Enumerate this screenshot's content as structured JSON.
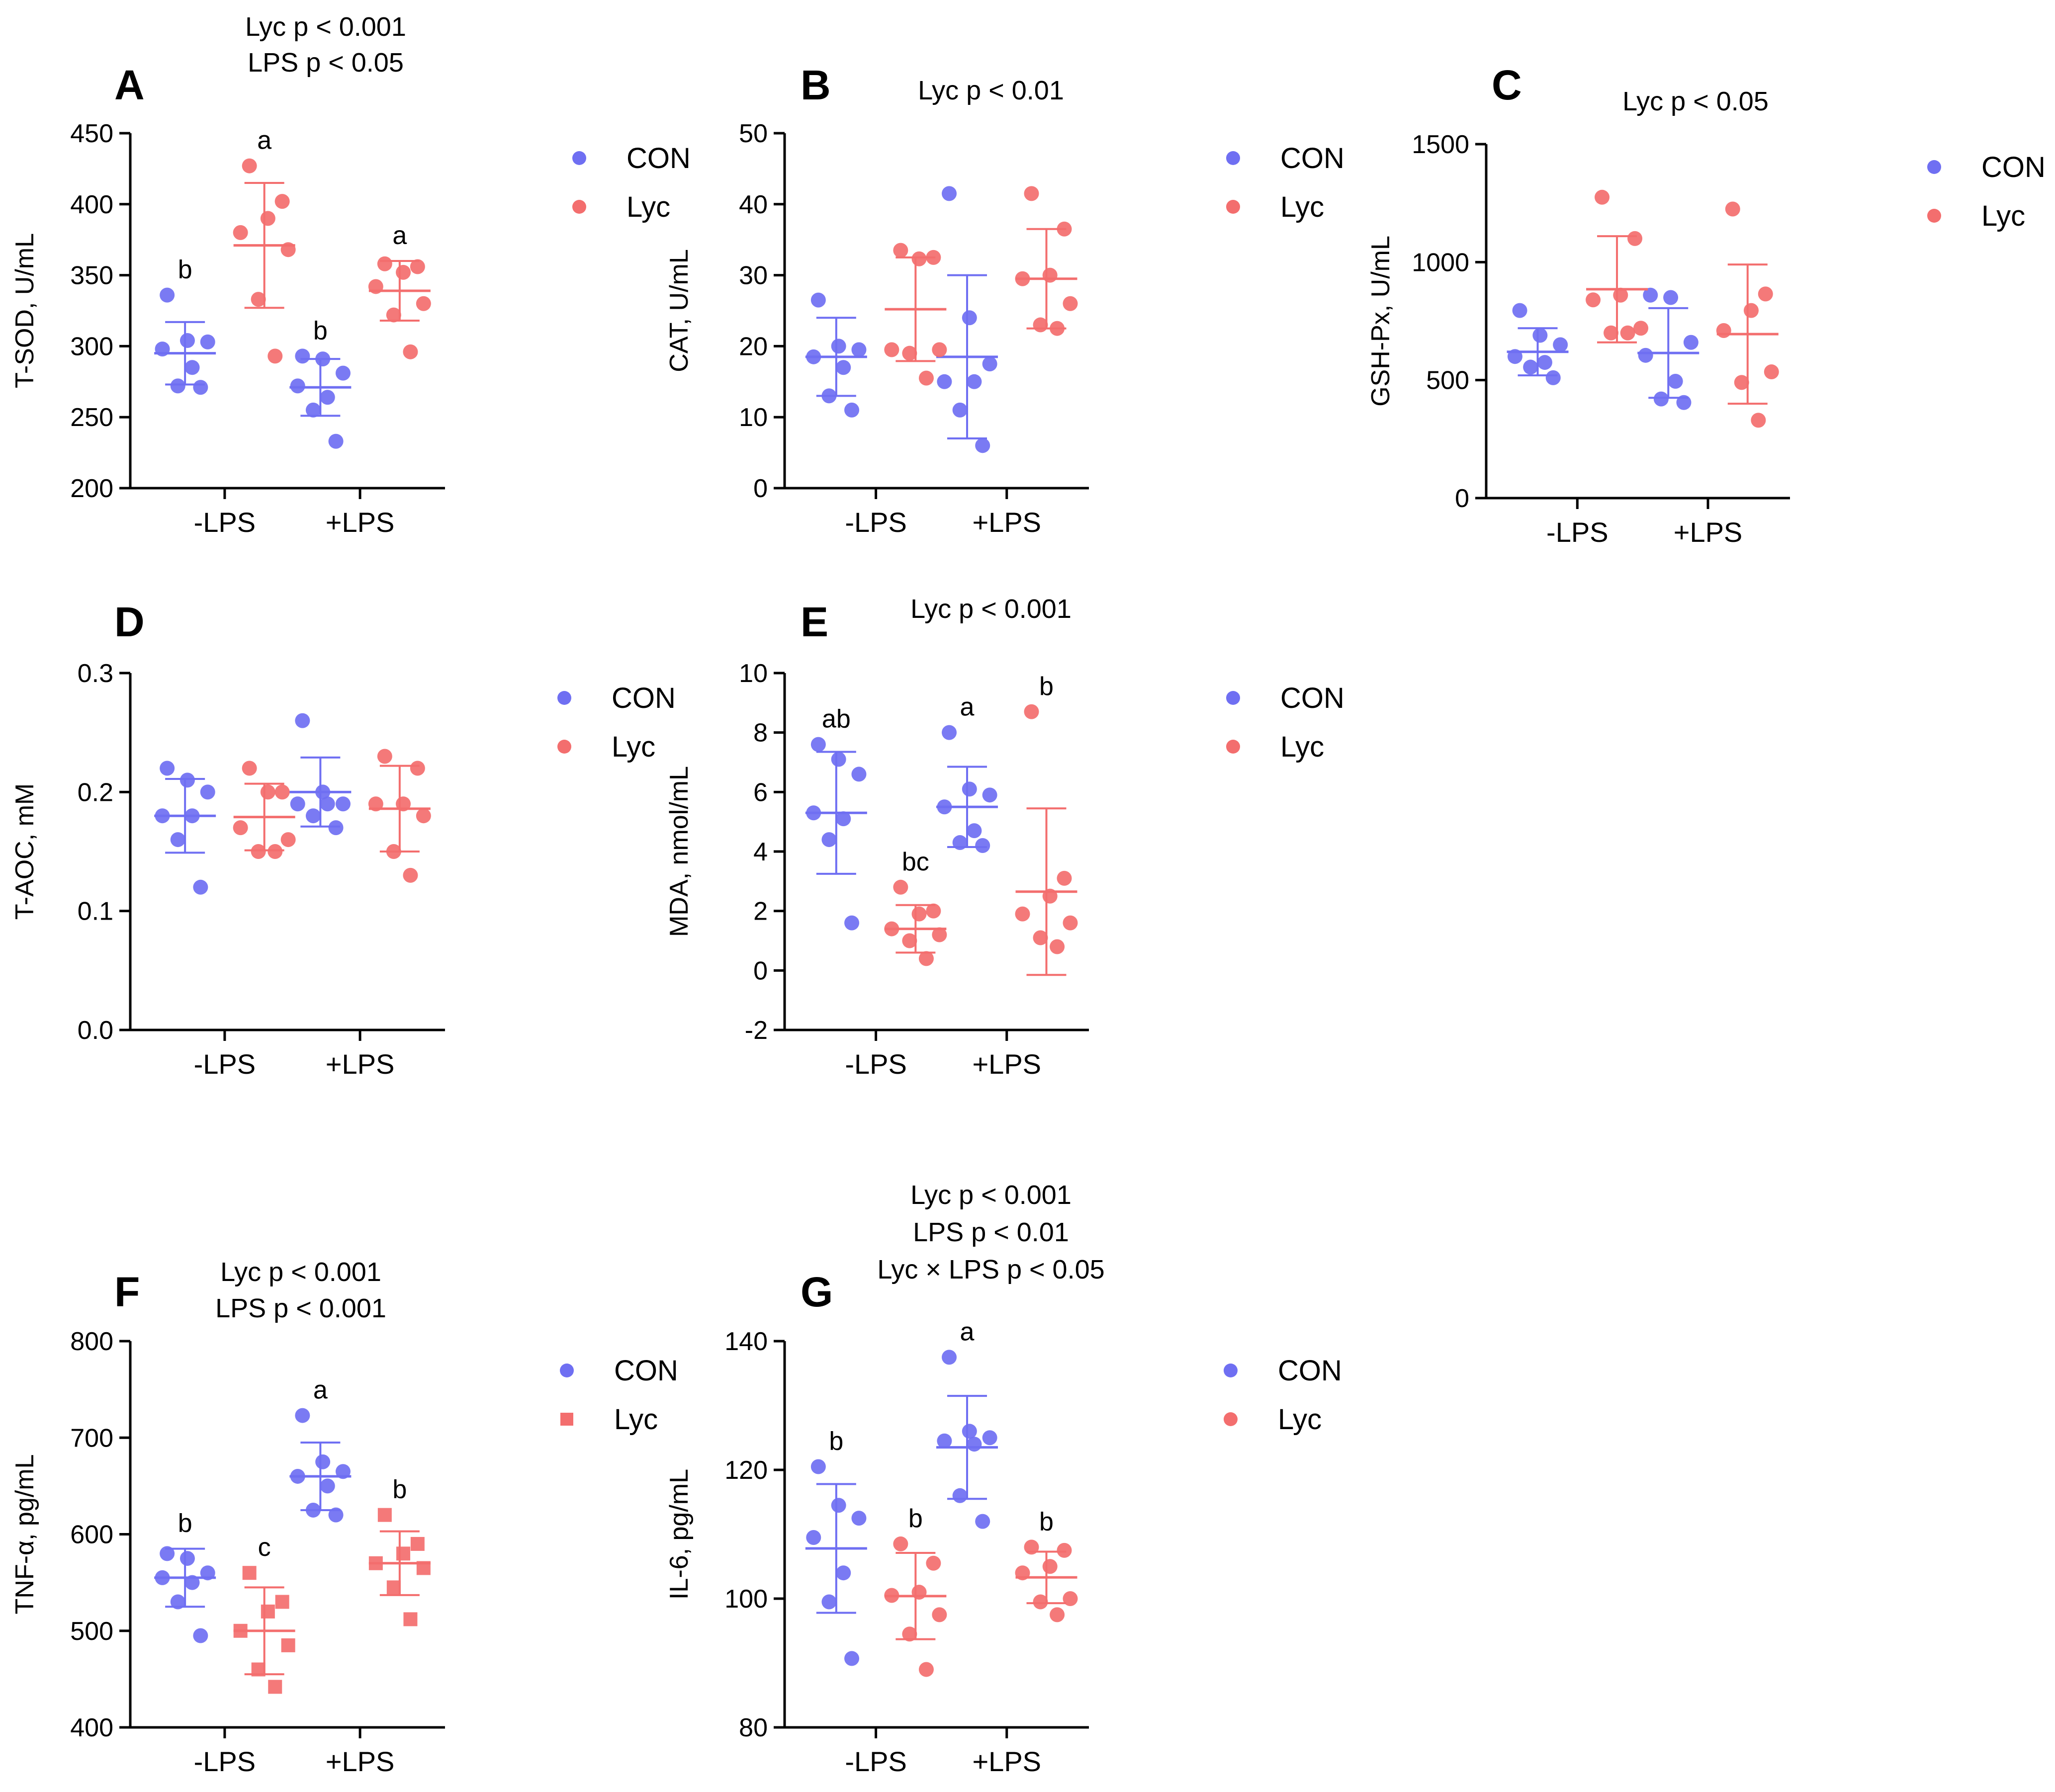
{
  "colors": {
    "con": "#6f6ff2",
    "lyc": "#f36e6e",
    "axis": "#000000"
  },
  "chart_data": [
    {
      "panel": "A",
      "type": "scatter",
      "title": "",
      "stats": [
        "Lyc p < 0.001",
        "LPS p < 0.05"
      ],
      "xlabel": "",
      "ylabel": "T-SOD, U/mL",
      "ylim": [
        200,
        450
      ],
      "ticks": [
        200,
        250,
        300,
        350,
        400,
        450
      ],
      "categories": [
        "-LPS",
        "+LPS"
      ],
      "legend": [
        "CON",
        "Lyc"
      ],
      "series": [
        {
          "name": "CON",
          "marker": "circle",
          "groups": [
            {
              "category": "-LPS",
              "mean": 295,
              "sd": 22,
              "points": [
                336,
                304,
                303,
                298,
                285,
                272,
                271
              ],
              "letter": "b"
            },
            {
              "category": "+LPS",
              "mean": 271,
              "sd": 20,
              "points": [
                293,
                291,
                281,
                272,
                264,
                255,
                233
              ],
              "letter": "b"
            }
          ]
        },
        {
          "name": "Lyc",
          "marker": "circle",
          "groups": [
            {
              "category": "-LPS",
              "mean": 371,
              "sd": 44,
              "points": [
                427,
                402,
                390,
                380,
                368,
                333,
                293
              ],
              "letter": "a"
            },
            {
              "category": "+LPS",
              "mean": 339,
              "sd": 21,
              "points": [
                358,
                356,
                352,
                342,
                330,
                322,
                296
              ],
              "letter": "a"
            }
          ]
        }
      ]
    },
    {
      "panel": "B",
      "type": "scatter",
      "title": "",
      "stats": [
        "Lyc p < 0.01"
      ],
      "xlabel": "",
      "ylabel": "CAT, U/mL",
      "ylim": [
        0,
        50
      ],
      "ticks": [
        0,
        10,
        20,
        30,
        40,
        50
      ],
      "categories": [
        "-LPS",
        "+LPS"
      ],
      "legend": [
        "CON",
        "Lyc"
      ],
      "series": [
        {
          "name": "CON",
          "marker": "circle",
          "groups": [
            {
              "category": "-LPS",
              "mean": 18.5,
              "sd": 5.5,
              "points": [
                26.5,
                20,
                19.5,
                18.5,
                17,
                13,
                11
              ],
              "letter": ""
            },
            {
              "category": "+LPS",
              "mean": 18.5,
              "sd": 11.5,
              "points": [
                41.5,
                24,
                17.5,
                15,
                15,
                11,
                6
              ],
              "letter": ""
            }
          ]
        },
        {
          "name": "Lyc",
          "marker": "circle",
          "groups": [
            {
              "category": "-LPS",
              "mean": 25.2,
              "sd": 7.3,
              "points": [
                33.5,
                32.5,
                32.3,
                19.5,
                19.5,
                19,
                15.5
              ],
              "letter": ""
            },
            {
              "category": "+LPS",
              "mean": 29.5,
              "sd": 7.0,
              "points": [
                41.5,
                36.5,
                30,
                29.5,
                26,
                23,
                22.5
              ],
              "letter": ""
            }
          ]
        }
      ]
    },
    {
      "panel": "C",
      "type": "scatter",
      "title": "",
      "stats": [
        "Lyc p < 0.05"
      ],
      "xlabel": "",
      "ylabel": "GSH-Px, U/mL",
      "ylim": [
        0,
        1500
      ],
      "ticks": [
        0,
        500,
        1000,
        1500
      ],
      "categories": [
        "-LPS",
        "+LPS"
      ],
      "legend": [
        "CON",
        "Lyc"
      ],
      "series": [
        {
          "name": "CON",
          "marker": "circle",
          "groups": [
            {
              "category": "-LPS",
              "mean": 620,
              "sd": 100,
              "points": [
                795,
                690,
                650,
                600,
                575,
                555,
                510
              ],
              "letter": ""
            },
            {
              "category": "+LPS",
              "mean": 615,
              "sd": 190,
              "points": [
                860,
                850,
                660,
                605,
                495,
                420,
                405
              ],
              "letter": ""
            }
          ]
        },
        {
          "name": "Lyc",
          "marker": "circle",
          "groups": [
            {
              "category": "-LPS",
              "mean": 885,
              "sd": 225,
              "points": [
                1275,
                1100,
                860,
                840,
                720,
                700,
                700
              ],
              "letter": ""
            },
            {
              "category": "+LPS",
              "mean": 695,
              "sd": 295,
              "points": [
                1225,
                865,
                795,
                710,
                535,
                490,
                330
              ],
              "letter": ""
            }
          ]
        }
      ]
    },
    {
      "panel": "D",
      "type": "scatter",
      "title": "",
      "stats": [],
      "xlabel": "",
      "ylabel": "T-AOC, mM",
      "ylim": [
        0.0,
        0.3
      ],
      "ticks": [
        0.0,
        0.1,
        0.2,
        0.3
      ],
      "tick_labels": [
        "0.0",
        "0.1",
        "0.2",
        "0.3"
      ],
      "categories": [
        "-LPS",
        "+LPS"
      ],
      "legend": [
        "CON",
        "Lyc"
      ],
      "series": [
        {
          "name": "CON",
          "marker": "circle",
          "groups": [
            {
              "category": "-LPS",
              "mean": 0.18,
              "sd": 0.031,
              "points": [
                0.22,
                0.21,
                0.2,
                0.18,
                0.18,
                0.16,
                0.12
              ],
              "letter": ""
            },
            {
              "category": "+LPS",
              "mean": 0.2,
              "sd": 0.029,
              "points": [
                0.26,
                0.2,
                0.19,
                0.19,
                0.19,
                0.18,
                0.17
              ],
              "letter": ""
            }
          ]
        },
        {
          "name": "Lyc",
          "marker": "circle",
          "groups": [
            {
              "category": "-LPS",
              "mean": 0.179,
              "sd": 0.028,
              "points": [
                0.22,
                0.2,
                0.2,
                0.17,
                0.16,
                0.15,
                0.15
              ],
              "letter": ""
            },
            {
              "category": "+LPS",
              "mean": 0.186,
              "sd": 0.036,
              "points": [
                0.23,
                0.22,
                0.19,
                0.19,
                0.18,
                0.15,
                0.13
              ],
              "letter": ""
            }
          ]
        }
      ]
    },
    {
      "panel": "E",
      "type": "scatter",
      "title": "",
      "stats": [
        "Lyc p < 0.001"
      ],
      "xlabel": "",
      "ylabel": "MDA, nmol/mL",
      "ylim": [
        -2,
        10
      ],
      "ticks": [
        -2,
        0,
        2,
        4,
        6,
        8,
        10
      ],
      "categories": [
        "-LPS",
        "+LPS"
      ],
      "legend": [
        "CON",
        "Lyc"
      ],
      "series": [
        {
          "name": "CON",
          "marker": "circle",
          "groups": [
            {
              "category": "-LPS",
              "mean": 5.3,
              "sd": 2.05,
              "points": [
                7.6,
                7.1,
                6.6,
                5.3,
                5.1,
                4.4,
                1.6
              ],
              "letter": "ab"
            },
            {
              "category": "+LPS",
              "mean": 5.5,
              "sd": 1.35,
              "points": [
                8.0,
                6.1,
                5.9,
                5.5,
                4.7,
                4.3,
                4.2
              ],
              "letter": "a"
            }
          ]
        },
        {
          "name": "Lyc",
          "marker": "circle",
          "groups": [
            {
              "category": "-LPS",
              "mean": 1.4,
              "sd": 0.8,
              "points": [
                2.8,
                2.0,
                1.9,
                1.4,
                1.2,
                1.0,
                0.4
              ],
              "letter": "bc"
            },
            {
              "category": "+LPS",
              "mean": 2.65,
              "sd": 2.8,
              "points": [
                8.7,
                3.1,
                2.5,
                1.9,
                1.6,
                1.1,
                0.8
              ],
              "letter": "b"
            }
          ]
        }
      ]
    },
    {
      "panel": "F",
      "type": "scatter",
      "title": "",
      "stats": [
        "Lyc p < 0.001",
        "LPS p < 0.001"
      ],
      "xlabel": "",
      "ylabel": "TNF-α, pg/mL",
      "ylim": [
        400,
        800
      ],
      "ticks": [
        400,
        500,
        600,
        700,
        800
      ],
      "categories": [
        "-LPS",
        "+LPS"
      ],
      "legend": [
        "CON",
        "Lyc"
      ],
      "series": [
        {
          "name": "CON",
          "marker": "circle",
          "groups": [
            {
              "category": "-LPS",
              "mean": 555,
              "sd": 30,
              "points": [
                580,
                575,
                560,
                555,
                550,
                530,
                495
              ],
              "letter": "b"
            },
            {
              "category": "+LPS",
              "mean": 660,
              "sd": 35,
              "points": [
                723,
                675,
                665,
                660,
                650,
                625,
                620
              ],
              "letter": "a"
            }
          ]
        },
        {
          "name": "Lyc",
          "marker": "square",
          "groups": [
            {
              "category": "-LPS",
              "mean": 500,
              "sd": 45,
              "points": [
                560,
                530,
                520,
                500,
                485,
                460,
                442
              ],
              "letter": "c"
            },
            {
              "category": "+LPS",
              "mean": 570,
              "sd": 33,
              "points": [
                620,
                590,
                580,
                570,
                565,
                545,
                512
              ],
              "letter": "b"
            }
          ]
        }
      ]
    },
    {
      "panel": "G",
      "type": "scatter",
      "title": "",
      "stats": [
        "Lyc p < 0.001",
        "LPS p < 0.01",
        "Lyc × LPS p < 0.05"
      ],
      "xlabel": "",
      "ylabel": "IL-6, pg/mL",
      "ylim": [
        80,
        140
      ],
      "ticks": [
        80,
        100,
        120,
        140
      ],
      "categories": [
        "-LPS",
        "+LPS"
      ],
      "legend": [
        "CON",
        "Lyc"
      ],
      "series": [
        {
          "name": "CON",
          "marker": "circle",
          "groups": [
            {
              "category": "-LPS",
              "mean": 107.8,
              "sd": 10,
              "points": [
                120.5,
                114.5,
                112.5,
                109.5,
                104,
                99.5,
                90.7
              ],
              "letter": "b"
            },
            {
              "category": "+LPS",
              "mean": 123.5,
              "sd": 8,
              "points": [
                137.5,
                126,
                125,
                124.5,
                124,
                116,
                112
              ],
              "letter": "a"
            }
          ]
        },
        {
          "name": "Lyc",
          "marker": "circle",
          "groups": [
            {
              "category": "-LPS",
              "mean": 100.4,
              "sd": 6.7,
              "points": [
                108.5,
                105.5,
                101,
                100.5,
                97.5,
                94.5,
                89
              ],
              "letter": "b"
            },
            {
              "category": "+LPS",
              "mean": 103.3,
              "sd": 4.0,
              "points": [
                108,
                107.5,
                105,
                104,
                100,
                99.5,
                97.5
              ],
              "letter": "b"
            }
          ]
        }
      ]
    }
  ]
}
